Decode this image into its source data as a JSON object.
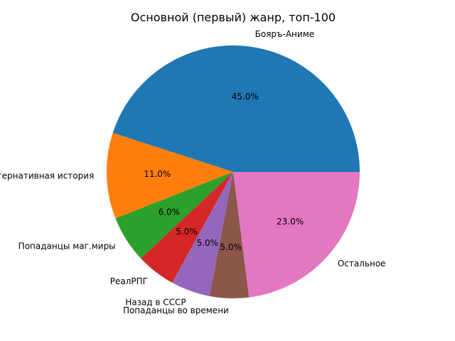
{
  "chart_data": {
    "type": "pie",
    "title": "Основной (первый) жанр, топ-100",
    "labels": [
      "Бояръ-Аниме",
      "Альтернативная история",
      "Попаданцы маг.миры",
      "РеалРПГ",
      "Назад в СССР",
      "Попаданцы во времени",
      "Остальное"
    ],
    "values": [
      45.0,
      11.0,
      6.0,
      5.0,
      5.0,
      5.0,
      23.0
    ],
    "percent_labels": [
      "45.0%",
      "11.0%",
      "6.0%",
      "5.0%",
      "5.0%",
      "5.0%",
      "23.0%"
    ],
    "colors": [
      "#1f77b4",
      "#ff7f0e",
      "#2ca02c",
      "#d62728",
      "#9467bd",
      "#8c564b",
      "#e377c2"
    ],
    "legend": "none"
  }
}
